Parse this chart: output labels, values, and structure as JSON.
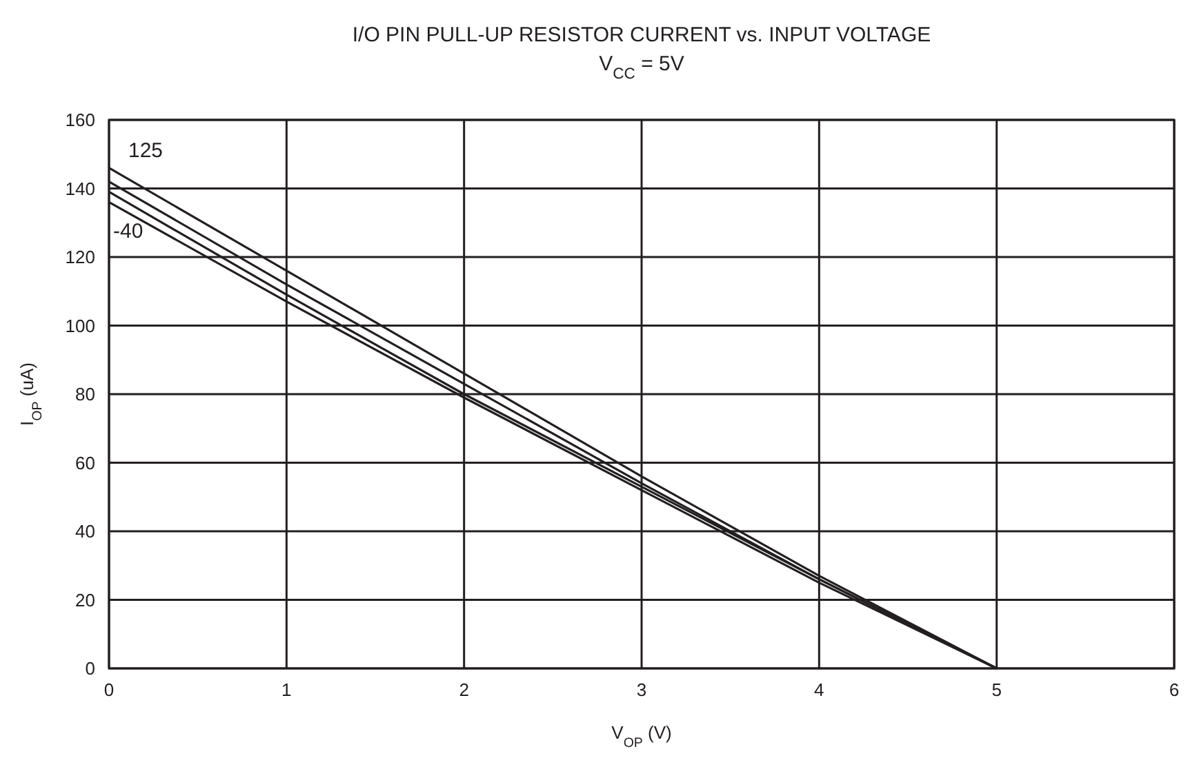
{
  "chart_data": {
    "type": "line",
    "title": "I/O PIN PULL-UP RESISTOR CURRENT vs. INPUT VOLTAGE",
    "subtitle": "V$_{CC}$ = 5V",
    "xlabel": "V$_{OP}$ (V)",
    "ylabel": "I$_{OP}$ (uA)",
    "x": [
      0,
      1,
      2,
      3,
      4,
      5
    ],
    "series": [
      {
        "name": "125",
        "color": "#231f20",
        "values": [
          146,
          116,
          86,
          56,
          27,
          0
        ]
      },
      {
        "color": "#231f20",
        "values": [
          142,
          112,
          83,
          54,
          26,
          0
        ]
      },
      {
        "color": "#231f20",
        "values": [
          139,
          109,
          80,
          53,
          26,
          0
        ]
      },
      {
        "name": "-40",
        "color": "#231f20",
        "values": [
          136,
          107,
          79,
          52,
          25,
          0
        ]
      }
    ],
    "xlim": [
      0,
      6
    ],
    "ylim": [
      0,
      160
    ],
    "xticks": [
      0,
      1,
      2,
      3,
      4,
      5,
      6
    ],
    "yticks": [
      0,
      20,
      40,
      60,
      80,
      100,
      120,
      140,
      160
    ],
    "grid": true,
    "marker": "none",
    "line_style": "solid"
  }
}
